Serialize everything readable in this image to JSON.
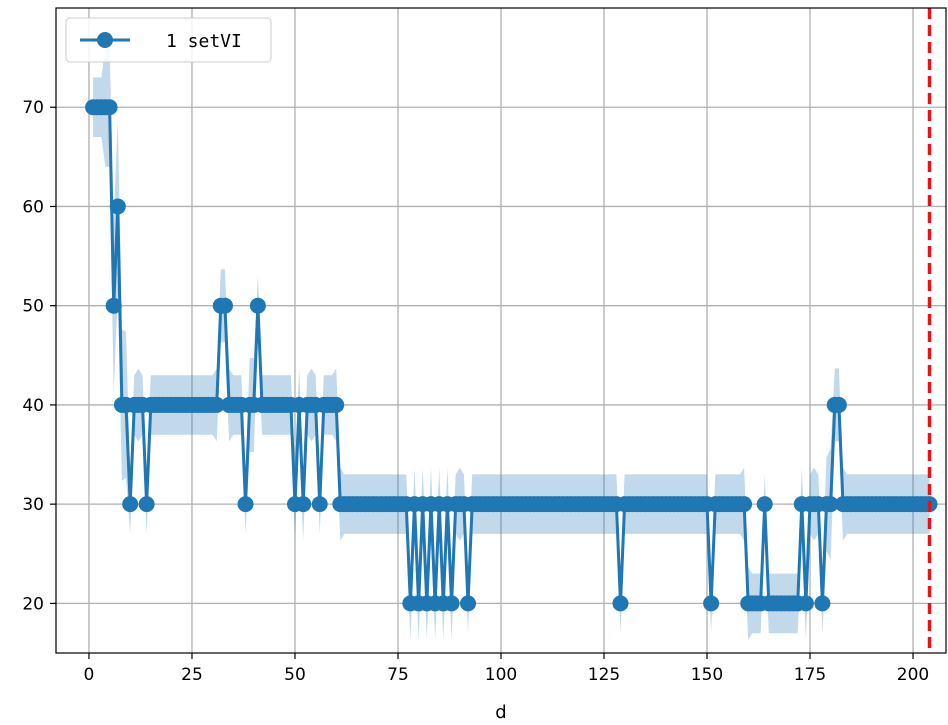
{
  "chart_data": {
    "type": "line",
    "title": "",
    "xlabel": "d",
    "ylabel": "",
    "xlim": [
      -8,
      208
    ],
    "ylim": [
      15,
      80
    ],
    "xticks": [
      0,
      25,
      50,
      75,
      100,
      125,
      150,
      175,
      200
    ],
    "yticks": [
      20,
      30,
      40,
      50,
      60,
      70
    ],
    "grid": true,
    "legend_position": "top-left",
    "marker_color": "#1f77b4",
    "band_color": "#1f77b4",
    "vline": {
      "x": 204,
      "color": "#ee1111",
      "style": "dashed"
    },
    "series": [
      {
        "name": "1 setVI",
        "color": "#1f77b4",
        "x": [
          1,
          2,
          3,
          4,
          5,
          6,
          7,
          8,
          9,
          10,
          11,
          12,
          13,
          14,
          15,
          16,
          17,
          18,
          19,
          20,
          21,
          22,
          23,
          24,
          25,
          26,
          27,
          28,
          29,
          30,
          31,
          32,
          33,
          34,
          35,
          36,
          37,
          38,
          39,
          40,
          41,
          42,
          43,
          44,
          45,
          46,
          47,
          48,
          49,
          50,
          51,
          52,
          53,
          54,
          55,
          56,
          57,
          58,
          59,
          60,
          61,
          62,
          63,
          64,
          65,
          66,
          67,
          68,
          69,
          70,
          71,
          72,
          73,
          74,
          75,
          76,
          77,
          78,
          79,
          80,
          81,
          82,
          83,
          84,
          85,
          86,
          87,
          88,
          89,
          90,
          91,
          92,
          93,
          94,
          95,
          96,
          97,
          98,
          99,
          100,
          101,
          102,
          103,
          104,
          105,
          106,
          107,
          108,
          109,
          110,
          111,
          112,
          113,
          114,
          115,
          116,
          117,
          118,
          119,
          120,
          121,
          122,
          123,
          124,
          125,
          126,
          127,
          128,
          129,
          130,
          131,
          132,
          133,
          134,
          135,
          136,
          137,
          138,
          139,
          140,
          141,
          142,
          143,
          144,
          145,
          146,
          147,
          148,
          149,
          150,
          151,
          152,
          153,
          154,
          155,
          156,
          157,
          158,
          159,
          160,
          161,
          162,
          163,
          164,
          165,
          166,
          167,
          168,
          169,
          170,
          171,
          172,
          173,
          174,
          175,
          176,
          177,
          178,
          179,
          180,
          181,
          182,
          183,
          184,
          185,
          186,
          187,
          188,
          189,
          190,
          191,
          192,
          193,
          194,
          195,
          196,
          197,
          198,
          199,
          200,
          201,
          202,
          203,
          204
        ],
        "y": [
          70,
          70,
          70,
          70,
          70,
          50,
          60,
          40,
          40,
          30,
          40,
          40,
          40,
          30,
          40,
          40,
          40,
          40,
          40,
          40,
          40,
          40,
          40,
          40,
          40,
          40,
          40,
          40,
          40,
          40,
          40,
          50,
          50,
          40,
          40,
          40,
          40,
          30,
          40,
          40,
          50,
          40,
          40,
          40,
          40,
          40,
          40,
          40,
          40,
          30,
          40,
          30,
          40,
          40,
          40,
          30,
          40,
          40,
          40,
          40,
          30,
          30,
          30,
          30,
          30,
          30,
          30,
          30,
          30,
          30,
          30,
          30,
          30,
          30,
          30,
          30,
          30,
          20,
          30,
          20,
          30,
          20,
          30,
          20,
          30,
          20,
          30,
          20,
          30,
          30,
          30,
          20,
          30,
          30,
          30,
          30,
          30,
          30,
          30,
          30,
          30,
          30,
          30,
          30,
          30,
          30,
          30,
          30,
          30,
          30,
          30,
          30,
          30,
          30,
          30,
          30,
          30,
          30,
          30,
          30,
          30,
          30,
          30,
          30,
          30,
          30,
          30,
          30,
          20,
          30,
          30,
          30,
          30,
          30,
          30,
          30,
          30,
          30,
          30,
          30,
          30,
          30,
          30,
          30,
          30,
          30,
          30,
          30,
          30,
          30,
          20,
          30,
          30,
          30,
          30,
          30,
          30,
          30,
          30,
          20,
          20,
          20,
          20,
          30,
          20,
          20,
          20,
          20,
          20,
          20,
          20,
          20,
          30,
          20,
          30,
          30,
          30,
          20,
          30,
          30,
          40,
          40,
          30,
          30,
          30,
          30,
          30,
          30,
          30,
          30,
          30,
          30,
          30,
          30,
          30,
          30,
          30,
          30,
          30,
          30,
          30,
          30,
          30,
          30
        ]
      }
    ]
  },
  "legend": {
    "label": "1 setVI"
  }
}
